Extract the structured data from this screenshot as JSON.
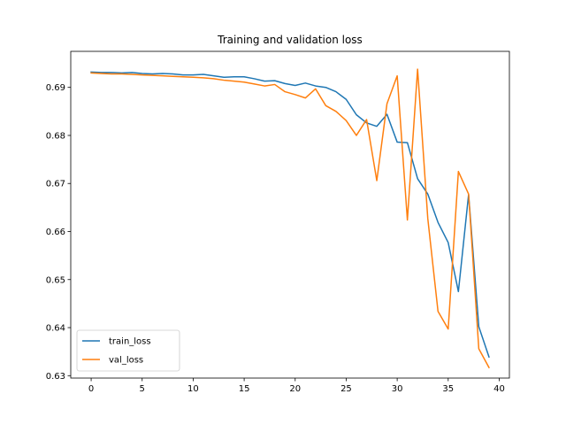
{
  "chart_data": {
    "type": "line",
    "title": "Training and validation loss",
    "xlabel": "",
    "ylabel": "",
    "xlim": [
      -2,
      41
    ],
    "ylim": [
      0.6295,
      0.6975
    ],
    "xticks": [
      0,
      5,
      10,
      15,
      20,
      25,
      30,
      35,
      40
    ],
    "yticks": [
      0.63,
      0.64,
      0.65,
      0.66,
      0.67,
      0.68,
      0.69
    ],
    "ytick_labels": [
      "0.63",
      "0.64",
      "0.65",
      "0.66",
      "0.67",
      "0.68",
      "0.69"
    ],
    "grid": false,
    "legend_position": "lower-left",
    "x": [
      0,
      1,
      2,
      3,
      4,
      5,
      6,
      7,
      8,
      9,
      10,
      11,
      12,
      13,
      14,
      15,
      16,
      17,
      18,
      19,
      20,
      21,
      22,
      23,
      24,
      25,
      26,
      27,
      28,
      29,
      30,
      31,
      32,
      33,
      34,
      35,
      36,
      37,
      38,
      39
    ],
    "series": [
      {
        "name": "train_loss",
        "color": "#1f77b4",
        "values": [
          0.6932,
          0.6931,
          0.6931,
          0.693,
          0.6931,
          0.6929,
          0.6928,
          0.6929,
          0.6928,
          0.6926,
          0.6926,
          0.6927,
          0.6924,
          0.6921,
          0.6922,
          0.6922,
          0.6918,
          0.6913,
          0.6914,
          0.6908,
          0.6904,
          0.6909,
          0.6903,
          0.69,
          0.6891,
          0.6875,
          0.6843,
          0.6826,
          0.6819,
          0.6844,
          0.6786,
          0.6785,
          0.671,
          0.6678,
          0.6619,
          0.6577,
          0.6475,
          0.6677,
          0.6402,
          0.6339
        ]
      },
      {
        "name": "val_loss",
        "color": "#ff7f0e",
        "values": [
          0.693,
          0.6929,
          0.6928,
          0.6928,
          0.6927,
          0.6926,
          0.6925,
          0.6924,
          0.6923,
          0.6922,
          0.6921,
          0.692,
          0.6918,
          0.6915,
          0.6913,
          0.6911,
          0.6907,
          0.6903,
          0.6906,
          0.6891,
          0.6885,
          0.6878,
          0.6897,
          0.6862,
          0.685,
          0.6831,
          0.68,
          0.6833,
          0.6706,
          0.6866,
          0.6924,
          0.6624,
          0.6938,
          0.6627,
          0.6434,
          0.6397,
          0.6725,
          0.6678,
          0.6356,
          0.6317
        ]
      }
    ]
  }
}
